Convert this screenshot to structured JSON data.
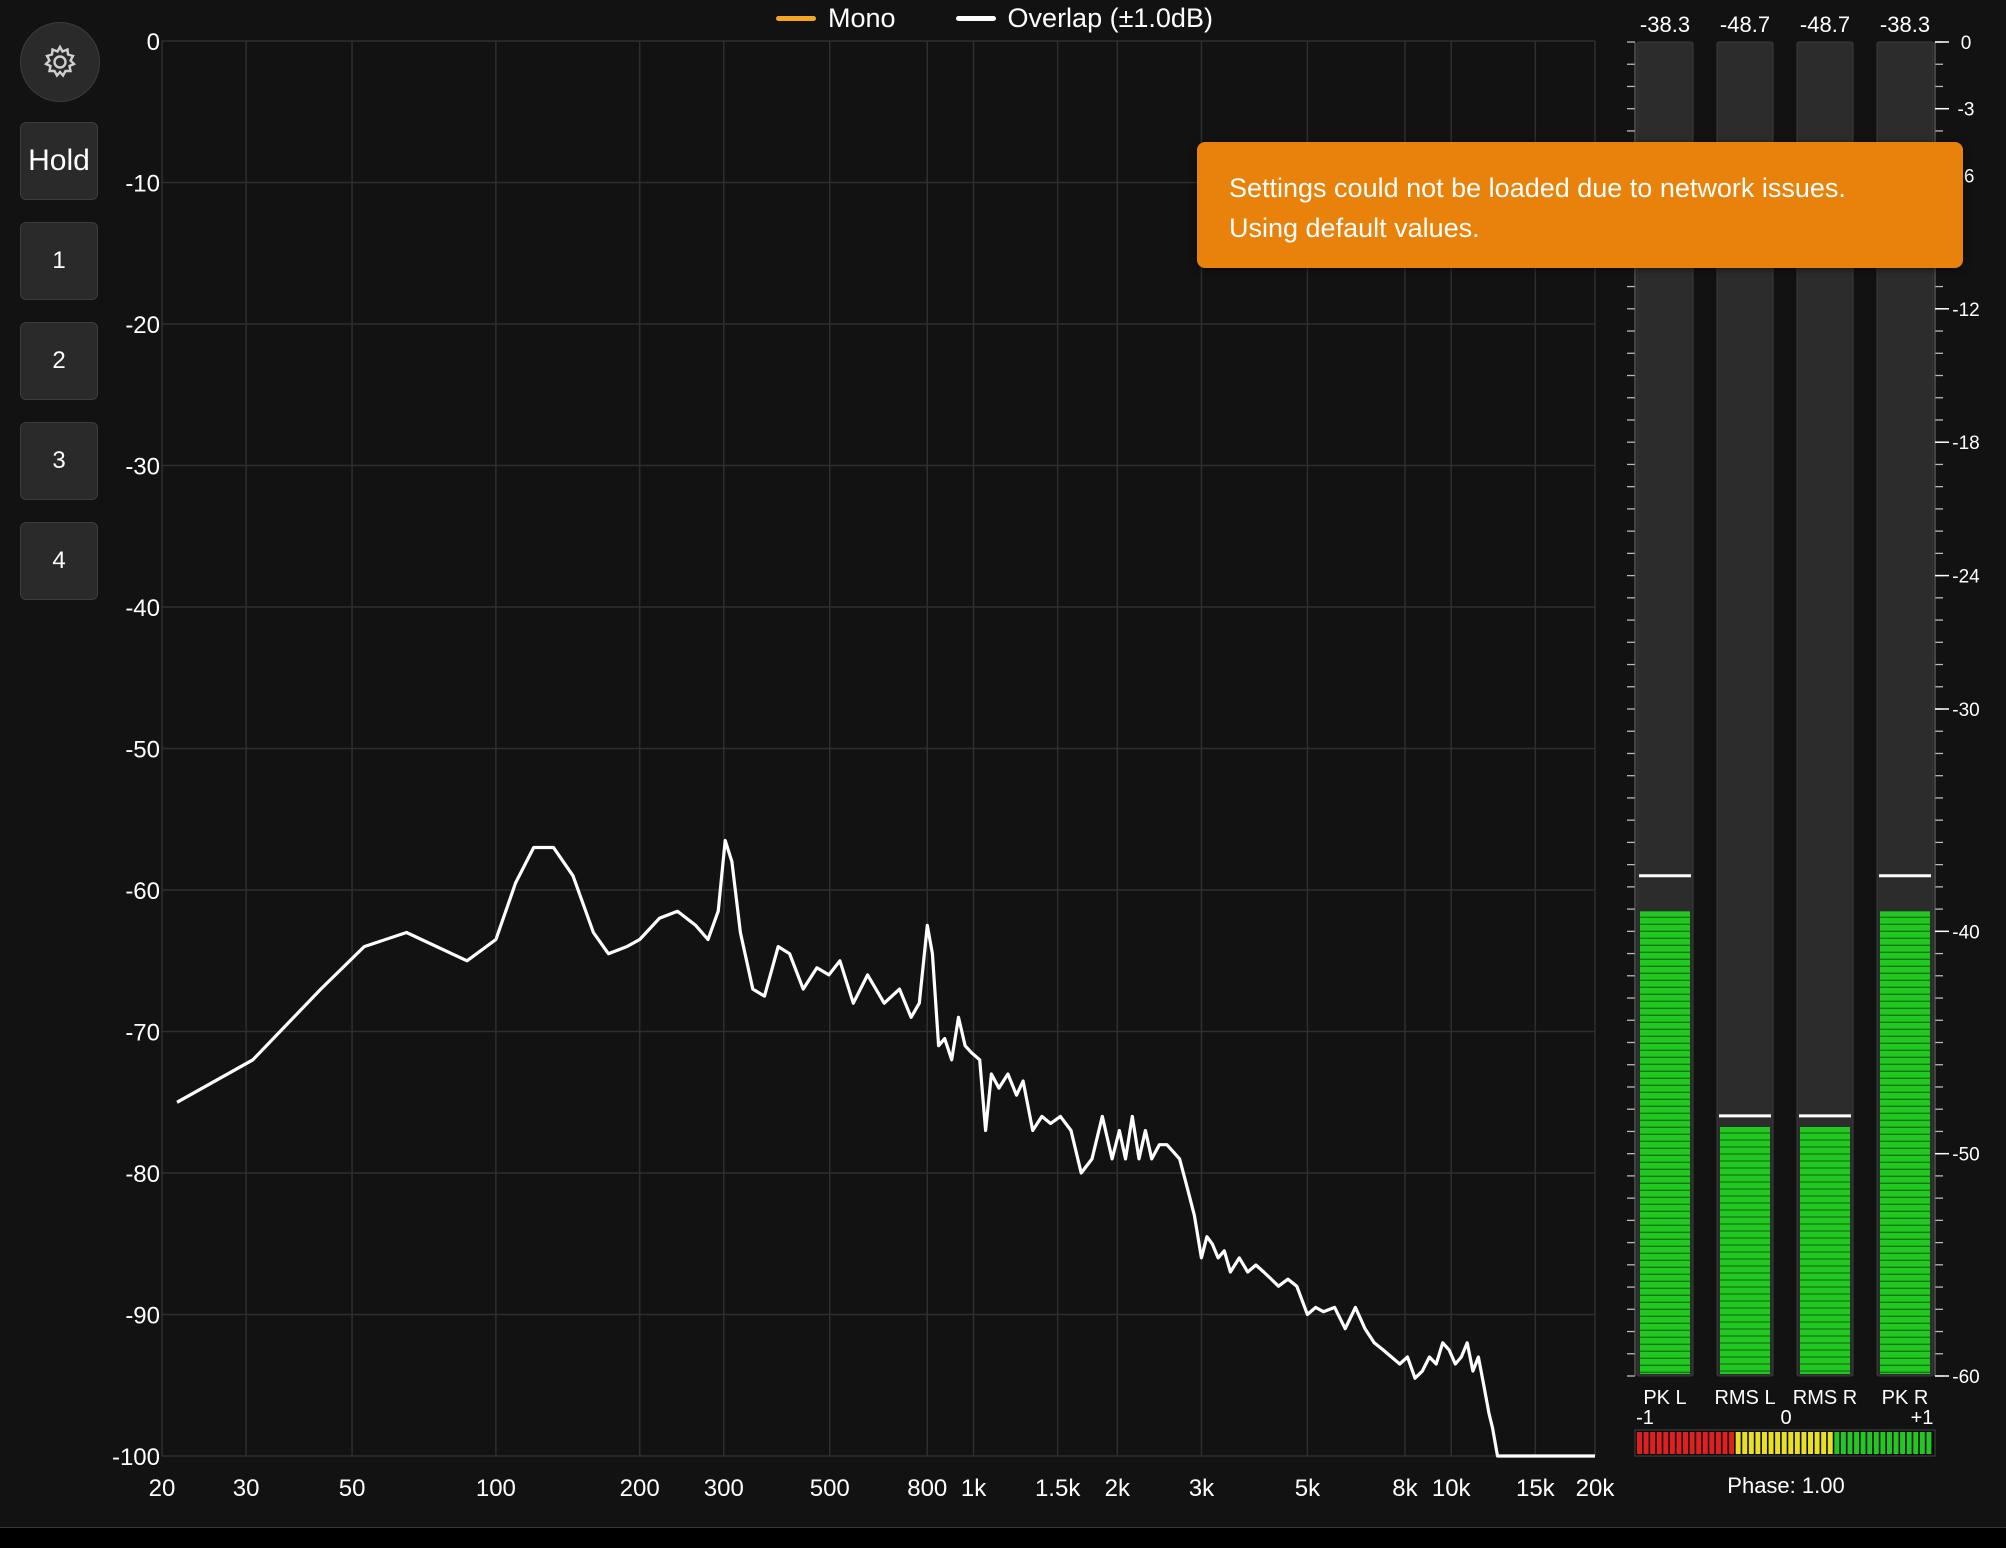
{
  "sidebar": {
    "settings_icon": "gear-icon",
    "buttons": [
      {
        "label": "Hold"
      },
      {
        "label": "1"
      },
      {
        "label": "2"
      },
      {
        "label": "3"
      },
      {
        "label": "4"
      }
    ]
  },
  "legend": {
    "items": [
      {
        "label": "Mono",
        "color": "#f5a623"
      },
      {
        "label": "Overlap (±1.0dB)",
        "color": "#ffffff"
      }
    ]
  },
  "toast": {
    "line1": "Settings could not be loaded due to network issues.",
    "line2": "Using default values.",
    "color": "#e8820a"
  },
  "chart_data": {
    "type": "line",
    "title": "",
    "xlabel": "",
    "ylabel": "",
    "xscale": "log",
    "xlim": [
      20,
      20000
    ],
    "ylim": [
      -100,
      0
    ],
    "grid": true,
    "x_ticks": [
      {
        "v": 20,
        "t": "20"
      },
      {
        "v": 30,
        "t": "30"
      },
      {
        "v": 50,
        "t": "50"
      },
      {
        "v": 100,
        "t": "100"
      },
      {
        "v": 200,
        "t": "200"
      },
      {
        "v": 300,
        "t": "300"
      },
      {
        "v": 500,
        "t": "500"
      },
      {
        "v": 800,
        "t": "800"
      },
      {
        "v": 1000,
        "t": "1k"
      },
      {
        "v": 1500,
        "t": "1.5k"
      },
      {
        "v": 2000,
        "t": "2k"
      },
      {
        "v": 3000,
        "t": "3k"
      },
      {
        "v": 5000,
        "t": "5k"
      },
      {
        "v": 8000,
        "t": "8k"
      },
      {
        "v": 10000,
        "t": "10k"
      },
      {
        "v": 15000,
        "t": "15k"
      },
      {
        "v": 20000,
        "t": "20k"
      }
    ],
    "y_ticks": [
      {
        "v": 0,
        "t": "0"
      },
      {
        "v": -10,
        "t": "-10"
      },
      {
        "v": -20,
        "t": "-20"
      },
      {
        "v": -30,
        "t": "-30"
      },
      {
        "v": -40,
        "t": "-40"
      },
      {
        "v": -50,
        "t": "-50"
      },
      {
        "v": -60,
        "t": "-60"
      },
      {
        "v": -70,
        "t": "-70"
      },
      {
        "v": -80,
        "t": "-80"
      },
      {
        "v": -90,
        "t": "-90"
      },
      {
        "v": -100,
        "t": "-100"
      }
    ],
    "series": [
      {
        "name": "Overlap (±1.0dB)",
        "color": "#ffffff",
        "x": [
          21.5,
          31,
          43,
          53,
          65,
          87,
          100,
          110,
          120,
          132,
          145,
          160,
          172,
          188,
          200,
          220,
          240,
          262,
          278,
          292,
          302,
          312,
          325,
          345,
          365,
          390,
          412,
          440,
          470,
          498,
          525,
          560,
          600,
          650,
          700,
          740,
          770,
          800,
          820,
          845,
          870,
          900,
          930,
          960,
          990,
          1030,
          1060,
          1090,
          1130,
          1180,
          1230,
          1270,
          1330,
          1390,
          1450,
          1520,
          1600,
          1680,
          1770,
          1860,
          1950,
          2020,
          2080,
          2150,
          2220,
          2290,
          2360,
          2450,
          2540,
          2620,
          2700,
          2800,
          2900,
          3000,
          3080,
          3160,
          3250,
          3350,
          3450,
          3600,
          3750,
          3900,
          4050,
          4200,
          4350,
          4550,
          4750,
          5000,
          5200,
          5400,
          5700,
          6000,
          6300,
          6600,
          6900,
          7200,
          7500,
          7800,
          8100,
          8400,
          8700,
          9000,
          9300,
          9600,
          9900,
          10200,
          10500,
          10800,
          11100,
          11400,
          11700,
          12000,
          12200,
          12500,
          20000
        ],
        "y": [
          -75,
          -72,
          -67,
          -64,
          -63,
          -65,
          -63.5,
          -59.5,
          -57,
          -57,
          -59,
          -63,
          -64.5,
          -64,
          -63.5,
          -62,
          -61.5,
          -62.5,
          -63.5,
          -61.5,
          -56.5,
          -58,
          -63,
          -67,
          -67.5,
          -64,
          -64.5,
          -67,
          -65.5,
          -66,
          -65,
          -68,
          -66,
          -68,
          -67,
          -69,
          -68,
          -62.5,
          -64.5,
          -71,
          -70.5,
          -72,
          -69,
          -71,
          -71.5,
          -72,
          -77,
          -73,
          -74,
          -73,
          -74.5,
          -73.5,
          -77,
          -76,
          -76.5,
          -76,
          -77,
          -80,
          -79,
          -76,
          -79,
          -77,
          -79,
          -76,
          -79,
          -77,
          -79,
          -78,
          -78,
          -78.5,
          -79,
          -81,
          -83,
          -86,
          -84.5,
          -85,
          -86,
          -85.5,
          -87,
          -86,
          -87,
          -86.5,
          -87,
          -87.5,
          -88,
          -87.5,
          -88,
          -90,
          -89.5,
          -89.8,
          -89.5,
          -91,
          -89.5,
          -91,
          -92,
          -92.5,
          -93,
          -93.5,
          -93,
          -94.5,
          -94,
          -93,
          -93.5,
          -92,
          -92.5,
          -93.5,
          -93,
          -92,
          -94,
          -93,
          -95,
          -97,
          -98,
          -100,
          -100
        ]
      },
      {
        "name": "Mono",
        "color": "#f5a623",
        "x": [],
        "y": []
      }
    ]
  },
  "meters": {
    "channels": [
      {
        "label": "PK L",
        "value": "-38.3",
        "hold_db": -37.5,
        "level_db": -39.1
      },
      {
        "label": "RMS L",
        "value": "-48.7",
        "hold_db": -48.3,
        "level_db": -48.8
      },
      {
        "label": "RMS R",
        "value": "-48.7",
        "hold_db": -48.3,
        "level_db": -48.8
      },
      {
        "label": "PK R",
        "value": "-38.3",
        "hold_db": -37.5,
        "level_db": -39.1
      }
    ],
    "scale": [
      {
        "v": 0,
        "t": "0"
      },
      {
        "v": -3,
        "t": "-3"
      },
      {
        "v": -6,
        "t": "-6"
      },
      {
        "v": -12,
        "t": "-12"
      },
      {
        "v": -18,
        "t": "-18"
      },
      {
        "v": -24,
        "t": "-24"
      },
      {
        "v": -30,
        "t": "-30"
      },
      {
        "v": -40,
        "t": "-40"
      },
      {
        "v": -50,
        "t": "-50"
      },
      {
        "v": -60,
        "t": "-60"
      }
    ],
    "range_db": [
      -60,
      0
    ],
    "green": "#22c722",
    "phase": {
      "min_label": "-1",
      "mid_label": "0",
      "max_label": "+1",
      "text": "Phase: 1.00",
      "value": 1.0
    }
  }
}
